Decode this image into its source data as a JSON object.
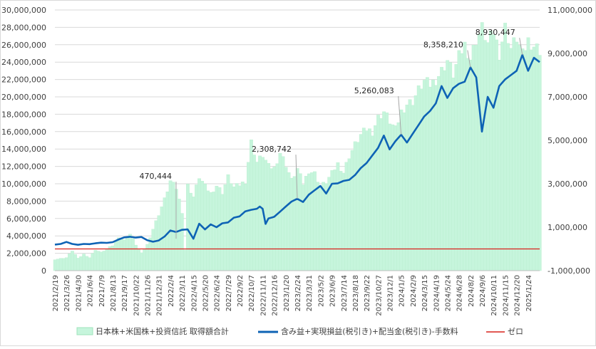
{
  "chart_data": {
    "type": "area",
    "left_axis": {
      "ylim": [
        0,
        30000000
      ],
      "ticks": [
        "30,000,000",
        "28,000,000",
        "26,000,000",
        "24,000,000",
        "22,000,000",
        "20,000,000",
        "18,000,000",
        "16,000,000",
        "14,000,000",
        "12,000,000",
        "10,000,000",
        "8,000,000",
        "6,000,000",
        "4,000,000",
        "2,000,000",
        "0"
      ]
    },
    "right_axis": {
      "ylim": [
        -1000000,
        11000000
      ],
      "ticks": [
        "11,000,000",
        "9,000,000",
        "7,000,000",
        "5,000,000",
        "3,000,000",
        "1,000,000",
        "-1,000,000"
      ]
    },
    "x_ticks": [
      "2021/2/19",
      "2021/3/26",
      "2021/4/30",
      "2021/6/4",
      "2021/7/9",
      "2021/8/13",
      "2021/9/17",
      "2021/10/22",
      "2021/11/26",
      "2021/12/31",
      "2022/2/4",
      "2022/3/11",
      "2022/4/15",
      "2022/5/20",
      "2022/6/24",
      "2022/7/29",
      "2022/9/2",
      "2022/10/7",
      "2022/11/11",
      "2022/12/16",
      "2023/1/20",
      "2023/2/24",
      "2023/3/31",
      "2023/5/2",
      "2023/6/9",
      "2023/7/14",
      "2023/8/18",
      "2023/9/22",
      "2023/10/27",
      "2023/12/1",
      "2024/1/5",
      "2024/2/9",
      "2024/3/15",
      "2024/4/19",
      "2024/5/24",
      "2024/6/28",
      "2024/8/2",
      "2024/9/6",
      "2024/10/11",
      "2024/11/15",
      "2024/12/20",
      "2025/1/24"
    ],
    "series": [
      {
        "name": "日本株+米国株+投資信託 取得額合計",
        "type": "area",
        "axis": "left",
        "color": "#c6f5dc",
        "points": [
          [
            0,
            1300000
          ],
          [
            4,
            1500000
          ],
          [
            6,
            2300000
          ],
          [
            8,
            1400000
          ],
          [
            10,
            1900000
          ],
          [
            12,
            1500000
          ],
          [
            14,
            2400000
          ],
          [
            16,
            2100000
          ],
          [
            18,
            2500000
          ],
          [
            20,
            2900000
          ],
          [
            22,
            3900000
          ],
          [
            24,
            3500000
          ],
          [
            26,
            4200000
          ],
          [
            28,
            3000000
          ],
          [
            30,
            2000000
          ],
          [
            32,
            3000000
          ],
          [
            34,
            4800000
          ],
          [
            36,
            6500000
          ],
          [
            38,
            8200000
          ],
          [
            40,
            10300000
          ],
          [
            42,
            9500000
          ],
          [
            44,
            6800000
          ],
          [
            45,
            2400000
          ],
          [
            46,
            9800000
          ],
          [
            48,
            8500000
          ],
          [
            50,
            10800000
          ],
          [
            52,
            9700000
          ],
          [
            54,
            8900000
          ],
          [
            56,
            9800000
          ],
          [
            58,
            9000000
          ],
          [
            60,
            10800000
          ],
          [
            62,
            9600000
          ],
          [
            64,
            9900000
          ],
          [
            66,
            10300000
          ],
          [
            68,
            14800000
          ],
          [
            70,
            12500000
          ],
          [
            72,
            13300000
          ],
          [
            74,
            12000000
          ],
          [
            76,
            11800000
          ],
          [
            78,
            13600000
          ],
          [
            80,
            12200000
          ],
          [
            82,
            10400000
          ],
          [
            84,
            11700000
          ],
          [
            86,
            10000000
          ],
          [
            88,
            11500000
          ],
          [
            90,
            11200000
          ],
          [
            92,
            9700000
          ],
          [
            94,
            10200000
          ],
          [
            96,
            11200000
          ],
          [
            98,
            12300000
          ],
          [
            100,
            11300000
          ],
          [
            102,
            13200000
          ],
          [
            104,
            14500000
          ],
          [
            106,
            15600000
          ],
          [
            108,
            16300000
          ],
          [
            110,
            16000000
          ],
          [
            112,
            17600000
          ],
          [
            114,
            18300000
          ],
          [
            116,
            17200000
          ],
          [
            118,
            16200000
          ],
          [
            120,
            18300000
          ],
          [
            122,
            19200000
          ],
          [
            124,
            19500000
          ],
          [
            126,
            20800000
          ],
          [
            128,
            21800000
          ],
          [
            130,
            21400000
          ],
          [
            132,
            22000000
          ],
          [
            134,
            23000000
          ],
          [
            136,
            24200000
          ],
          [
            138,
            22600000
          ],
          [
            140,
            24600000
          ],
          [
            142,
            26000000
          ],
          [
            144,
            24400000
          ],
          [
            146,
            26600000
          ],
          [
            148,
            27900000
          ],
          [
            150,
            26100000
          ],
          [
            152,
            27500000
          ],
          [
            154,
            25000000
          ],
          [
            156,
            28000000
          ],
          [
            158,
            25600000
          ],
          [
            160,
            26800000
          ],
          [
            162,
            24800000
          ],
          [
            164,
            26500000
          ],
          [
            166,
            25900000
          ],
          [
            168,
            25400000
          ]
        ]
      },
      {
        "name": "含み益+実現損益(税引き)+配当金(税引き)-手数料",
        "type": "line",
        "axis": "right",
        "color": "#0e63b5",
        "points": [
          [
            0,
            200000
          ],
          [
            2,
            230000
          ],
          [
            4,
            320000
          ],
          [
            6,
            230000
          ],
          [
            8,
            190000
          ],
          [
            10,
            230000
          ],
          [
            12,
            220000
          ],
          [
            14,
            260000
          ],
          [
            16,
            290000
          ],
          [
            18,
            280000
          ],
          [
            20,
            310000
          ],
          [
            22,
            430000
          ],
          [
            24,
            530000
          ],
          [
            26,
            560000
          ],
          [
            28,
            520000
          ],
          [
            30,
            550000
          ],
          [
            32,
            400000
          ],
          [
            34,
            330000
          ],
          [
            36,
            390000
          ],
          [
            38,
            570000
          ],
          [
            40,
            850000
          ],
          [
            42,
            780000
          ],
          [
            44,
            880000
          ],
          [
            46,
            900000
          ],
          [
            48,
            470000
          ],
          [
            50,
            1160000
          ],
          [
            52,
            900000
          ],
          [
            54,
            1130000
          ],
          [
            56,
            1000000
          ],
          [
            58,
            1180000
          ],
          [
            60,
            1220000
          ],
          [
            62,
            1440000
          ],
          [
            64,
            1500000
          ],
          [
            66,
            1730000
          ],
          [
            68,
            1800000
          ],
          [
            70,
            1850000
          ],
          [
            71,
            1950000
          ],
          [
            72,
            1850000
          ],
          [
            73,
            1150000
          ],
          [
            74,
            1400000
          ],
          [
            76,
            1480000
          ],
          [
            78,
            1710000
          ],
          [
            80,
            1950000
          ],
          [
            82,
            2180000
          ],
          [
            84,
            2308742
          ],
          [
            86,
            2160000
          ],
          [
            88,
            2500000
          ],
          [
            90,
            2700000
          ],
          [
            92,
            2900000
          ],
          [
            94,
            2550000
          ],
          [
            96,
            3000000
          ],
          [
            98,
            3020000
          ],
          [
            100,
            3130000
          ],
          [
            102,
            3180000
          ],
          [
            104,
            3400000
          ],
          [
            106,
            3720000
          ],
          [
            108,
            3950000
          ],
          [
            110,
            4300000
          ],
          [
            112,
            4650000
          ],
          [
            114,
            5220000
          ],
          [
            116,
            4580000
          ],
          [
            118,
            4960000
          ],
          [
            120,
            5260083
          ],
          [
            122,
            4900000
          ],
          [
            124,
            5300000
          ],
          [
            126,
            5700000
          ],
          [
            128,
            6100000
          ],
          [
            130,
            6350000
          ],
          [
            132,
            6700000
          ],
          [
            134,
            7500000
          ],
          [
            136,
            6950000
          ],
          [
            138,
            7400000
          ],
          [
            140,
            7600000
          ],
          [
            142,
            7700000
          ],
          [
            144,
            8358210
          ],
          [
            146,
            7900000
          ],
          [
            148,
            5400000
          ],
          [
            150,
            7000000
          ],
          [
            152,
            6500000
          ],
          [
            154,
            7500000
          ],
          [
            156,
            7800000
          ],
          [
            158,
            8000000
          ],
          [
            160,
            8200000
          ],
          [
            162,
            8930447
          ],
          [
            164,
            8200000
          ],
          [
            166,
            8800000
          ],
          [
            168,
            8600000
          ]
        ]
      },
      {
        "name": "ゼロ",
        "type": "line",
        "axis": "right",
        "color": "#d9221c",
        "value": 0
      }
    ],
    "annotations": [
      {
        "label": "470,444",
        "x": 42,
        "y": 470444
      },
      {
        "label": "2,308,742",
        "x": 84,
        "y": 2308742
      },
      {
        "label": "5,260,083",
        "x": 120,
        "y": 5260083
      },
      {
        "label": "8,358,210",
        "x": 144,
        "y": 8358210
      },
      {
        "label": "8,930,447",
        "x": 162,
        "y": 8930447
      }
    ],
    "legend_position": "bottom",
    "grid": "horizontal"
  }
}
